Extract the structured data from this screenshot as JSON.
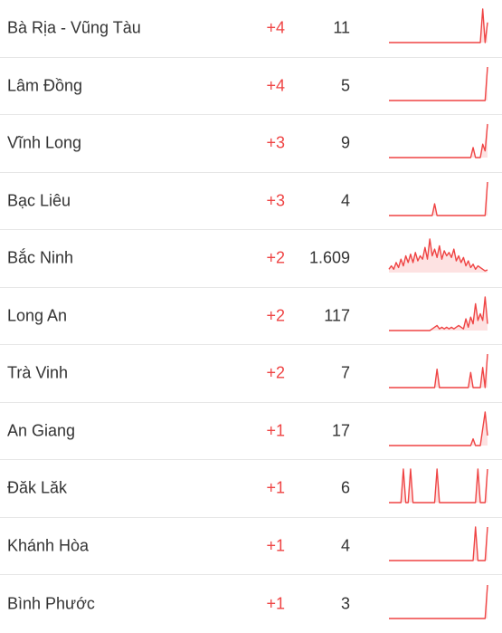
{
  "colors": {
    "delta": "#ef4444",
    "sparkline_stroke": "#ef4444",
    "sparkline_fill": "#fde2e2",
    "divider": "#e6e6e6",
    "text": "#333333"
  },
  "rows": [
    {
      "province": "Bà Rịa - Vũng Tàu",
      "new_cases": "+4",
      "total": "11",
      "trend": [
        0,
        0,
        0,
        0,
        0,
        0,
        0,
        0,
        0,
        0,
        0,
        0,
        0,
        0,
        0,
        0,
        0,
        0,
        0,
        0,
        0,
        0,
        0,
        0,
        0,
        0,
        0,
        0,
        0,
        0,
        0,
        0,
        0,
        0,
        0,
        0,
        0,
        0,
        0,
        1,
        0,
        0.6
      ]
    },
    {
      "province": "Lâm Đồng",
      "new_cases": "+4",
      "total": "5",
      "trend": [
        0,
        0,
        0,
        0,
        0,
        0,
        0,
        0,
        0,
        0,
        0,
        0,
        0,
        0,
        0,
        0,
        0,
        0,
        0,
        0,
        0,
        0,
        0,
        0,
        0,
        0,
        0,
        0,
        0,
        0,
        0,
        0,
        0,
        0,
        0,
        0,
        0,
        0,
        0,
        0,
        0,
        1
      ]
    },
    {
      "province": "Vĩnh Long",
      "new_cases": "+3",
      "total": "9",
      "trend": [
        0,
        0,
        0,
        0,
        0,
        0,
        0,
        0,
        0,
        0,
        0,
        0,
        0,
        0,
        0,
        0,
        0,
        0,
        0,
        0,
        0,
        0,
        0,
        0,
        0,
        0,
        0,
        0,
        0,
        0,
        0,
        0,
        0,
        0,
        0,
        0.3,
        0,
        0,
        0,
        0.4,
        0.2,
        1
      ]
    },
    {
      "province": "Bạc Liêu",
      "new_cases": "+3",
      "total": "4",
      "trend": [
        0,
        0,
        0,
        0,
        0,
        0,
        0,
        0,
        0,
        0,
        0,
        0,
        0,
        0,
        0,
        0,
        0,
        0,
        0,
        0.35,
        0,
        0,
        0,
        0,
        0,
        0,
        0,
        0,
        0,
        0,
        0,
        0,
        0,
        0,
        0,
        0,
        0,
        0,
        0,
        0,
        0,
        1
      ]
    },
    {
      "province": "Bắc Ninh",
      "new_cases": "+2",
      "total": "1.609",
      "trend": [
        0.1,
        0.2,
        0.1,
        0.3,
        0.15,
        0.4,
        0.2,
        0.5,
        0.3,
        0.55,
        0.3,
        0.6,
        0.35,
        0.5,
        0.4,
        0.75,
        0.4,
        1,
        0.5,
        0.7,
        0.45,
        0.8,
        0.4,
        0.65,
        0.5,
        0.6,
        0.45,
        0.7,
        0.35,
        0.5,
        0.3,
        0.45,
        0.2,
        0.35,
        0.15,
        0.25,
        0.1,
        0.2,
        0.15,
        0.1,
        0.05,
        0.08
      ]
    },
    {
      "province": "Long An",
      "new_cases": "+2",
      "total": "117",
      "trend": [
        0,
        0,
        0,
        0,
        0,
        0,
        0,
        0,
        0,
        0,
        0,
        0,
        0,
        0,
        0,
        0,
        0,
        0,
        0.05,
        0.1,
        0.15,
        0.05,
        0.1,
        0.05,
        0.1,
        0.05,
        0.1,
        0.05,
        0.1,
        0.15,
        0.1,
        0.05,
        0.35,
        0.1,
        0.4,
        0.2,
        0.8,
        0.3,
        0.5,
        0.3,
        1,
        0.2
      ]
    },
    {
      "province": "Trà Vinh",
      "new_cases": "+2",
      "total": "7",
      "trend": [
        0,
        0,
        0,
        0,
        0,
        0,
        0,
        0,
        0,
        0,
        0,
        0,
        0,
        0,
        0,
        0,
        0,
        0,
        0,
        0,
        0.55,
        0,
        0,
        0,
        0,
        0,
        0,
        0,
        0,
        0,
        0,
        0,
        0,
        0,
        0.45,
        0,
        0,
        0,
        0,
        0.6,
        0,
        1
      ]
    },
    {
      "province": "An Giang",
      "new_cases": "+1",
      "total": "17",
      "trend": [
        0,
        0,
        0,
        0,
        0,
        0,
        0,
        0,
        0,
        0,
        0,
        0,
        0,
        0,
        0,
        0,
        0,
        0,
        0,
        0,
        0,
        0,
        0,
        0,
        0,
        0,
        0,
        0,
        0,
        0,
        0,
        0,
        0,
        0,
        0,
        0.2,
        0,
        0,
        0,
        0.5,
        1,
        0.3
      ]
    },
    {
      "province": "Đăk Lăk",
      "new_cases": "+1",
      "total": "6",
      "trend": [
        0,
        0,
        0,
        0,
        0,
        0,
        1,
        0,
        0,
        1,
        0,
        0,
        0,
        0,
        0,
        0,
        0,
        0,
        0,
        0,
        1,
        0,
        0,
        0,
        0,
        0,
        0,
        0,
        0,
        0,
        0,
        0,
        0,
        0,
        0,
        0,
        0,
        1,
        0,
        0,
        0,
        1
      ]
    },
    {
      "province": "Khánh Hòa",
      "new_cases": "+1",
      "total": "4",
      "trend": [
        0,
        0,
        0,
        0,
        0,
        0,
        0,
        0,
        0,
        0,
        0,
        0,
        0,
        0,
        0,
        0,
        0,
        0,
        0,
        0,
        0,
        0,
        0,
        0,
        0,
        0,
        0,
        0,
        0,
        0,
        0,
        0,
        0,
        0,
        0,
        0,
        1,
        0,
        0,
        0,
        0,
        1
      ]
    },
    {
      "province": "Bình Phước",
      "new_cases": "+1",
      "total": "3",
      "trend": [
        0,
        0,
        0,
        0,
        0,
        0,
        0,
        0,
        0,
        0,
        0,
        0,
        0,
        0,
        0,
        0,
        0,
        0,
        0,
        0,
        0,
        0,
        0,
        0,
        0,
        0,
        0,
        0,
        0,
        0,
        0,
        0,
        0,
        0,
        0,
        0,
        0,
        0,
        0,
        0,
        0,
        1
      ]
    }
  ]
}
